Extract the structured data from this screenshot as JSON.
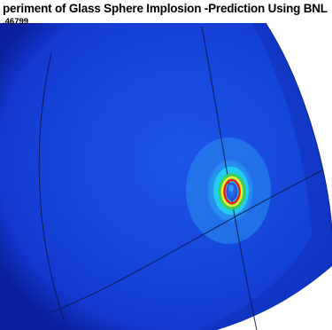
{
  "figure": {
    "title": "periment of Glass Sphere Implosion -Prediction Using BNL",
    "subtitle": ".46799"
  },
  "colors": {
    "background": "#ffffff",
    "sphere_deep": "#0a1f9e",
    "sphere_body": "#1339cf",
    "sphere_light": "#1d55e8",
    "halo_outer": "#2a8ff0",
    "halo_cyan": "#23d3f2",
    "ring_green": "#3ccf52",
    "ring_yellow": "#f4f02a",
    "ring_red": "#ea1f1a",
    "mesh_line": "#0b1a4f"
  }
}
